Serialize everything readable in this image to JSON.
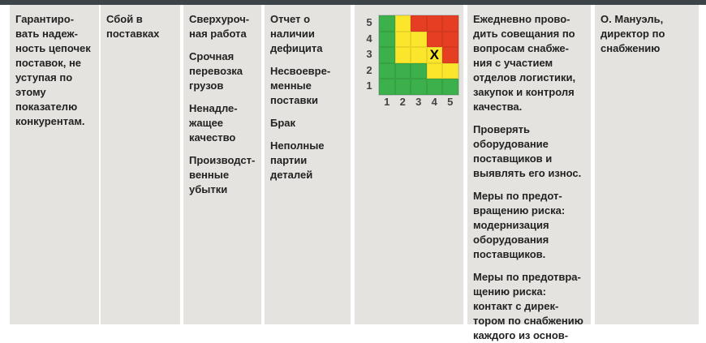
{
  "columns": [
    {
      "paragraphs": [
        "Гарантиро-вать надеж-ность цепочек поставок, не уступая по этому показателю конкурентам."
      ]
    },
    {
      "paragraphs": [
        "Сбой в поставках"
      ]
    },
    {
      "paragraphs": [
        "Сверхуроч-ная работа",
        "Срочная перевозка грузов",
        "Ненадле-жащее качество",
        "Производст-венные убытки"
      ]
    },
    {
      "paragraphs": [
        "Отчет о наличии дефицита",
        "Несвоевре-менные поставки",
        "Брак",
        "Неполные партии деталей"
      ]
    },
    {
      "paragraphs": []
    },
    {
      "paragraphs": [
        "Ежедневно прово-дить совещания по вопросам снабже-ния с участием отделов логистики, закупок и контроля качества.",
        "Проверять оборудование поставщиков и выявлять его износ.",
        "Меры по предот-вращению риска: модернизация оборудования поставщиков.",
        "Меры по предотвра-щению риска: контакт с дирек-тором по снабжению каждого из основ-"
      ]
    },
    {
      "paragraphs": [
        "О. Мануэль, директор по снабжению"
      ]
    }
  ],
  "risk_matrix": {
    "y_labels": [
      "5",
      "4",
      "3",
      "2",
      "1"
    ],
    "x_labels": [
      "1",
      "2",
      "3",
      "4",
      "5"
    ],
    "rows": [
      [
        "G",
        "Y",
        "R",
        "R",
        "R"
      ],
      [
        "G",
        "Y",
        "Y",
        "R",
        "R"
      ],
      [
        "G",
        "Y",
        "Y",
        "Y",
        "R"
      ],
      [
        "G",
        "G",
        "G",
        "Y",
        "Y"
      ],
      [
        "G",
        "G",
        "G",
        "G",
        "G"
      ]
    ],
    "marker": {
      "label": "X",
      "likelihood": 4,
      "impact": 3
    },
    "colors": {
      "G": "#3cb04a",
      "Y": "#fce62c",
      "R": "#e63e22"
    }
  }
}
